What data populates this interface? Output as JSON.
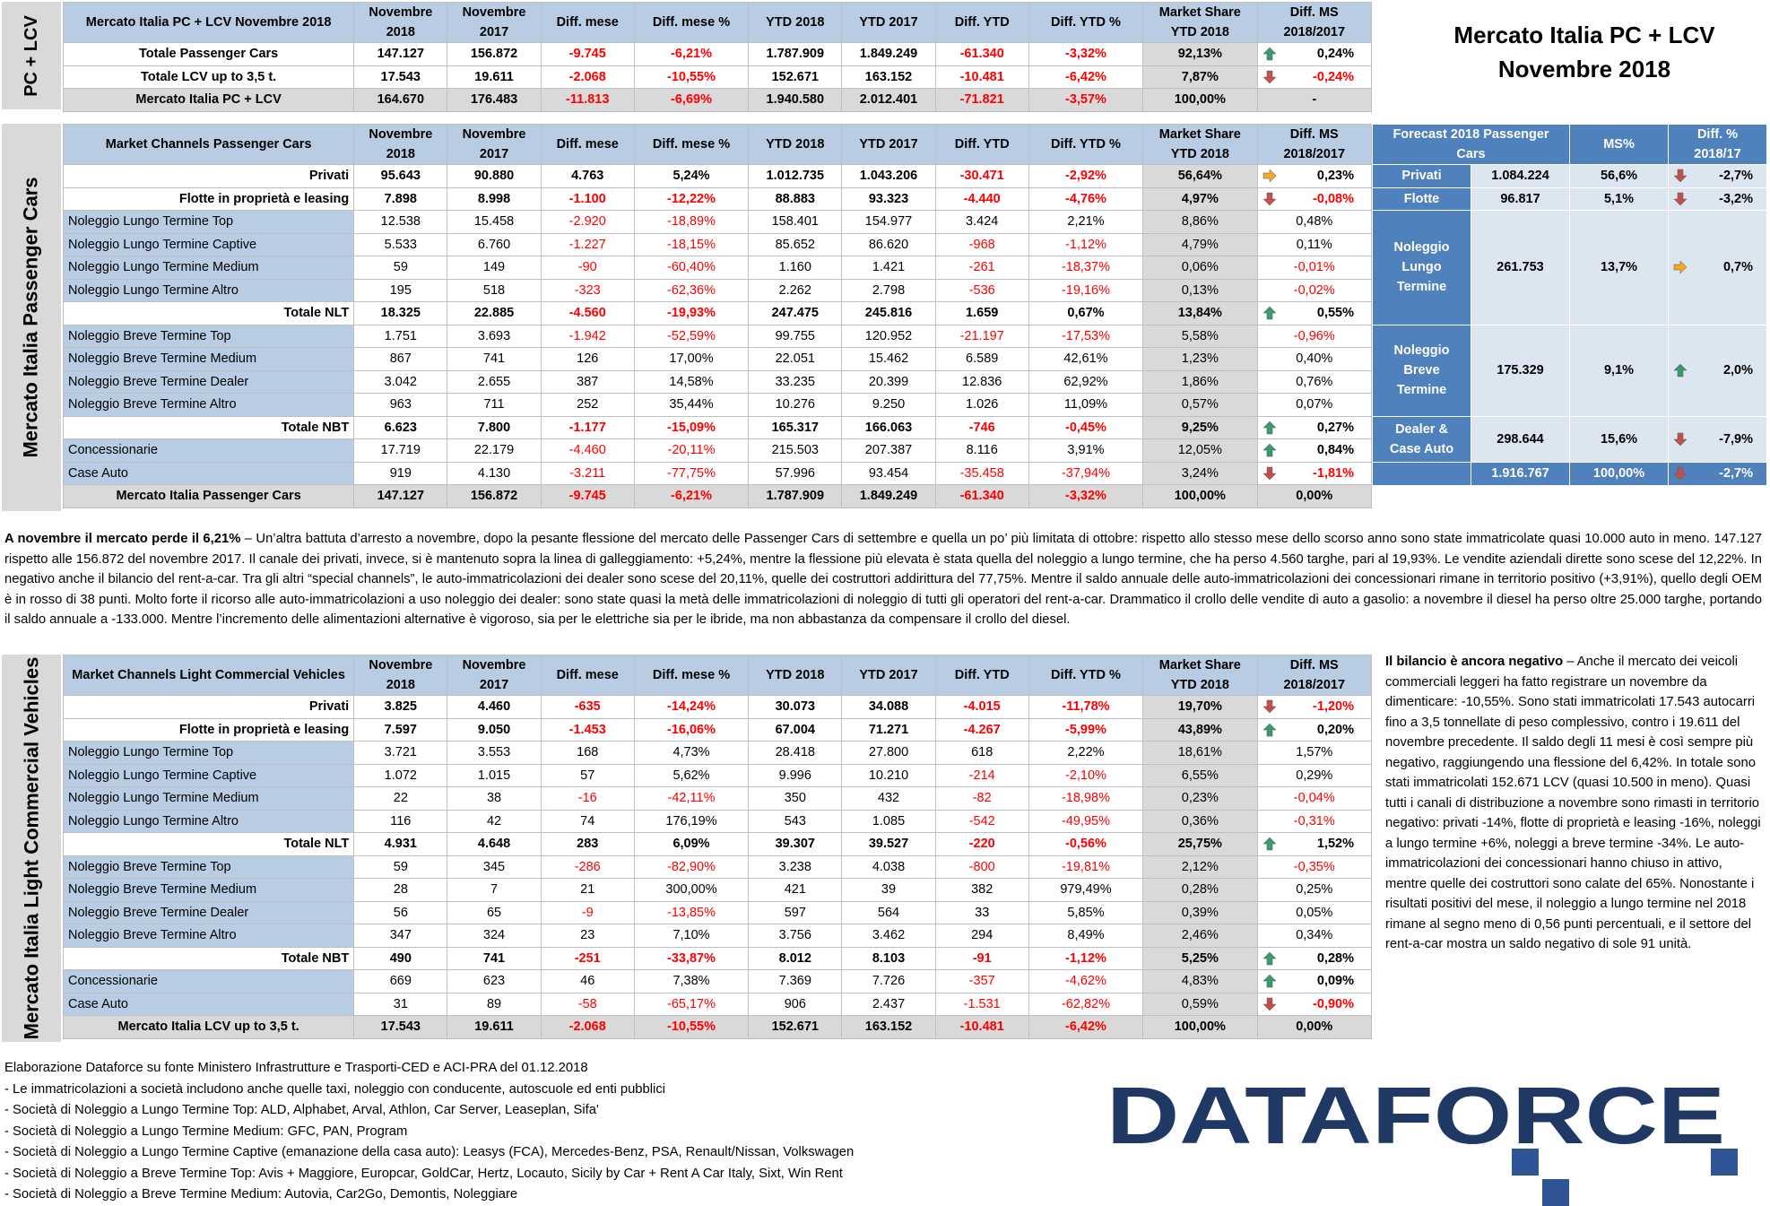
{
  "title": {
    "line1": "Mercato Italia PC + LCV",
    "line2": "Novembre 2018"
  },
  "top": {
    "side_label": "PC + LCV",
    "header": [
      "Mercato Italia PC + LCV Novembre 2018",
      "Novembre 2018",
      "Novembre 2017",
      "Diff. mese",
      "Diff. mese %",
      "YTD 2018",
      "YTD 2017",
      "Diff. YTD",
      "Diff. YTD %",
      "Market Share YTD 2018",
      "Diff. MS 2018/2017"
    ],
    "rows": [
      {
        "label": "Totale Passenger Cars",
        "c": [
          "147.127",
          "156.872",
          "-9.745",
          "-6,21%",
          "1.787.909",
          "1.849.249",
          "-61.340",
          "-3,32%",
          "92,13%"
        ],
        "arrow": "up",
        "dms": "0,24%"
      },
      {
        "label": "Totale LCV up to 3,5 t.",
        "c": [
          "17.543",
          "19.611",
          "-2.068",
          "-10,55%",
          "152.671",
          "163.152",
          "-10.481",
          "-6,42%",
          "7,87%"
        ],
        "arrow": "down",
        "dms": "-0,24%"
      },
      {
        "label": "Mercato Italia PC + LCV",
        "c": [
          "164.670",
          "176.483",
          "-11.813",
          "-6,69%",
          "1.940.580",
          "2.012.401",
          "-71.821",
          "-3,57%",
          "100,00%"
        ],
        "arrow": "",
        "dms": "-"
      }
    ]
  },
  "pc": {
    "side_label": "Mercato Italia Passenger Cars",
    "header": [
      "Market Channels Passenger Cars",
      "Novembre 2018",
      "Novembre 2017",
      "Diff. mese",
      "Diff. mese %",
      "YTD 2018",
      "YTD 2017",
      "Diff. YTD",
      "Diff. YTD %",
      "Market Share YTD 2018",
      "Diff. MS 2018/2017"
    ],
    "rows": [
      {
        "label": "Privati",
        "type": "b",
        "c": [
          "95.643",
          "90.880",
          "4.763",
          "5,24%",
          "1.012.735",
          "1.043.206",
          "-30.471",
          "-2,92%",
          "56,64%"
        ],
        "arrow": "right",
        "dms": "0,23%"
      },
      {
        "label": "Flotte in proprietà e leasing",
        "type": "b",
        "c": [
          "7.898",
          "8.998",
          "-1.100",
          "-12,22%",
          "88.883",
          "93.323",
          "-4.440",
          "-4,76%",
          "4,97%"
        ],
        "arrow": "down",
        "dms": "-0,08%"
      },
      {
        "label": "Noleggio Lungo Termine Top",
        "type": "ch",
        "c": [
          "12.538",
          "15.458",
          "-2.920",
          "-18,89%",
          "158.401",
          "154.977",
          "3.424",
          "2,21%",
          "8,86%"
        ],
        "arrow": "",
        "dms": "0,48%"
      },
      {
        "label": "Noleggio Lungo Termine Captive",
        "type": "ch",
        "c": [
          "5.533",
          "6.760",
          "-1.227",
          "-18,15%",
          "85.652",
          "86.620",
          "-968",
          "-1,12%",
          "4,79%"
        ],
        "arrow": "",
        "dms": "0,11%"
      },
      {
        "label": "Noleggio Lungo Termine Medium",
        "type": "ch",
        "c": [
          "59",
          "149",
          "-90",
          "-60,40%",
          "1.160",
          "1.421",
          "-261",
          "-18,37%",
          "0,06%"
        ],
        "arrow": "",
        "dms": "-0,01%"
      },
      {
        "label": "Noleggio Lungo Termine Altro",
        "type": "ch",
        "c": [
          "195",
          "518",
          "-323",
          "-62,36%",
          "2.262",
          "2.798",
          "-536",
          "-19,16%",
          "0,13%"
        ],
        "arrow": "",
        "dms": "-0,02%"
      },
      {
        "label": "Totale NLT",
        "type": "b",
        "c": [
          "18.325",
          "22.885",
          "-4.560",
          "-19,93%",
          "247.475",
          "245.816",
          "1.659",
          "0,67%",
          "13,84%"
        ],
        "arrow": "up",
        "dms": "0,55%"
      },
      {
        "label": "Noleggio Breve Termine Top",
        "type": "ch",
        "c": [
          "1.751",
          "3.693",
          "-1.942",
          "-52,59%",
          "99.755",
          "120.952",
          "-21.197",
          "-17,53%",
          "5,58%"
        ],
        "arrow": "",
        "dms": "-0,96%"
      },
      {
        "label": "Noleggio Breve Termine Medium",
        "type": "ch",
        "c": [
          "867",
          "741",
          "126",
          "17,00%",
          "22.051",
          "15.462",
          "6.589",
          "42,61%",
          "1,23%"
        ],
        "arrow": "",
        "dms": "0,40%"
      },
      {
        "label": "Noleggio Breve Termine Dealer",
        "type": "ch",
        "c": [
          "3.042",
          "2.655",
          "387",
          "14,58%",
          "33.235",
          "20.399",
          "12.836",
          "62,92%",
          "1,86%"
        ],
        "arrow": "",
        "dms": "0,76%"
      },
      {
        "label": "Noleggio Breve Termine Altro",
        "type": "ch",
        "c": [
          "963",
          "711",
          "252",
          "35,44%",
          "10.276",
          "9.250",
          "1.026",
          "11,09%",
          "0,57%"
        ],
        "arrow": "",
        "dms": "0,07%"
      },
      {
        "label": "Totale NBT",
        "type": "b",
        "c": [
          "6.623",
          "7.800",
          "-1.177",
          "-15,09%",
          "165.317",
          "166.063",
          "-746",
          "-0,45%",
          "9,25%"
        ],
        "arrow": "up",
        "dms": "0,27%"
      },
      {
        "label": "Concessionarie",
        "type": "ch",
        "c": [
          "17.719",
          "22.179",
          "-4.460",
          "-20,11%",
          "215.503",
          "207.387",
          "8.116",
          "3,91%",
          "12,05%"
        ],
        "arrow": "up",
        "dms": "0,84%",
        "dmsbold": true
      },
      {
        "label": "Case Auto",
        "type": "ch",
        "c": [
          "919",
          "4.130",
          "-3.211",
          "-77,75%",
          "57.996",
          "93.454",
          "-35.458",
          "-37,94%",
          "3,24%"
        ],
        "arrow": "down",
        "dms": "-1,81%",
        "dmsbold": true
      },
      {
        "label": "Mercato Italia Passenger Cars",
        "type": "tot",
        "c": [
          "147.127",
          "156.872",
          "-9.745",
          "-6,21%",
          "1.787.909",
          "1.849.249",
          "-61.340",
          "-3,32%",
          "100,00%"
        ],
        "arrow": "",
        "dms": "0,00%"
      }
    ]
  },
  "forecast": {
    "header": [
      "Forecast 2018 Passenger Cars",
      "MS%",
      "Diff. % 2018/17"
    ],
    "rows": [
      {
        "label": "Privati",
        "value": "1.084.224",
        "ms": "56,6%",
        "arrow": "down",
        "diff": "-2,7%"
      },
      {
        "label": "Flotte",
        "value": "96.817",
        "ms": "5,1%",
        "arrow": "down",
        "diff": "-3,2%"
      },
      {
        "label": "Noleggio Lungo Termine",
        "value": "261.753",
        "ms": "13,7%",
        "arrow": "right",
        "diff": "0,7%"
      },
      {
        "label": "Noleggio Breve Termine",
        "value": "175.329",
        "ms": "9,1%",
        "arrow": "up",
        "diff": "2,0%"
      },
      {
        "label": "Dealer & Case Auto",
        "value": "298.644",
        "ms": "15,6%",
        "arrow": "down",
        "diff": "-7,9%"
      },
      {
        "label": "",
        "value": "1.916.767",
        "ms": "100,00%",
        "arrow": "down",
        "diff": "-2,7%"
      }
    ]
  },
  "pc_text": {
    "lead": "A novembre il mercato perde il 6,21%",
    "body": " – Un’altra battuta d’arresto a novembre, dopo la pesante flessione del mercato delle Passenger Cars di settembre e quella un po’ più limitata di ottobre: rispetto allo stesso mese dello scorso anno sono state immatricolate quasi 10.000 auto in meno. 147.127 rispetto alle 156.872 del novembre 2017. Il canale dei privati, invece, si è mantenuto sopra la linea di galleggiamento: +5,24%, mentre la flessione più elevata è stata quella del noleggio a lungo termine, che ha perso 4.560 targhe, pari al 19,93%. Le vendite aziendali dirette sono scese del 12,22%. In negativo anche il bilancio del rent-a-car. Tra gli altri “special channels”, le auto-immatricolazioni dei dealer sono scese del 20,11%, quelle dei costruttori addirittura del 77,75%. Mentre il saldo annuale delle auto-immatricolazioni dei concessionari rimane in territorio positivo (+3,91%), quello degli OEM è in rosso di 38 punti. Molto forte il ricorso alle auto-immatricolazioni a uso noleggio dei dealer: sono state quasi la metà delle immatricolazioni di noleggio di tutti gli operatori del rent-a-car. Drammatico il crollo delle vendite di auto a gasolio: a novembre il diesel ha perso oltre 25.000 targhe, portando il saldo annuale a -133.000. Mentre l’incremento delle alimentazioni alternative è vigoroso, sia per le elettriche sia per le ibride, ma non abbastanza da compensare il crollo del diesel."
  },
  "lcv": {
    "side_label": "Mercato Italia Light Commercial Vehicles",
    "header": [
      "Market Channels Light Commercial Vehicles",
      "Novembre 2018",
      "Novembre 2017",
      "Diff. mese",
      "Diff. mese %",
      "YTD 2018",
      "YTD 2017",
      "Diff. YTD",
      "Diff. YTD %",
      "Market Share YTD 2018",
      "Diff. MS 2018/2017"
    ],
    "rows": [
      {
        "label": "Privati",
        "type": "b",
        "c": [
          "3.825",
          "4.460",
          "-635",
          "-14,24%",
          "30.073",
          "34.088",
          "-4.015",
          "-11,78%",
          "19,70%"
        ],
        "arrow": "down",
        "dms": "-1,20%"
      },
      {
        "label": "Flotte in proprietà e leasing",
        "type": "b",
        "c": [
          "7.597",
          "9.050",
          "-1.453",
          "-16,06%",
          "67.004",
          "71.271",
          "-4.267",
          "-5,99%",
          "43,89%"
        ],
        "arrow": "up",
        "dms": "0,20%"
      },
      {
        "label": "Noleggio Lungo Termine Top",
        "type": "ch",
        "c": [
          "3.721",
          "3.553",
          "168",
          "4,73%",
          "28.418",
          "27.800",
          "618",
          "2,22%",
          "18,61%"
        ],
        "arrow": "",
        "dms": "1,57%"
      },
      {
        "label": "Noleggio Lungo Termine Captive",
        "type": "ch",
        "c": [
          "1.072",
          "1.015",
          "57",
          "5,62%",
          "9.996",
          "10.210",
          "-214",
          "-2,10%",
          "6,55%"
        ],
        "arrow": "",
        "dms": "0,29%"
      },
      {
        "label": "Noleggio Lungo Termine Medium",
        "type": "ch",
        "c": [
          "22",
          "38",
          "-16",
          "-42,11%",
          "350",
          "432",
          "-82",
          "-18,98%",
          "0,23%"
        ],
        "arrow": "",
        "dms": "-0,04%"
      },
      {
        "label": "Noleggio Lungo Termine Altro",
        "type": "ch",
        "c": [
          "116",
          "42",
          "74",
          "176,19%",
          "543",
          "1.085",
          "-542",
          "-49,95%",
          "0,36%"
        ],
        "arrow": "",
        "dms": "-0,31%"
      },
      {
        "label": "Totale NLT",
        "type": "b",
        "c": [
          "4.931",
          "4.648",
          "283",
          "6,09%",
          "39.307",
          "39.527",
          "-220",
          "-0,56%",
          "25,75%"
        ],
        "arrow": "up",
        "dms": "1,52%"
      },
      {
        "label": "Noleggio Breve Termine Top",
        "type": "ch",
        "c": [
          "59",
          "345",
          "-286",
          "-82,90%",
          "3.238",
          "4.038",
          "-800",
          "-19,81%",
          "2,12%"
        ],
        "arrow": "",
        "dms": "-0,35%"
      },
      {
        "label": "Noleggio Breve Termine Medium",
        "type": "ch",
        "c": [
          "28",
          "7",
          "21",
          "300,00%",
          "421",
          "39",
          "382",
          "979,49%",
          "0,28%"
        ],
        "arrow": "",
        "dms": "0,25%"
      },
      {
        "label": "Noleggio Breve Termine Dealer",
        "type": "ch",
        "c": [
          "56",
          "65",
          "-9",
          "-13,85%",
          "597",
          "564",
          "33",
          "5,85%",
          "0,39%"
        ],
        "arrow": "",
        "dms": "0,05%"
      },
      {
        "label": "Noleggio Breve Termine Altro",
        "type": "ch",
        "c": [
          "347",
          "324",
          "23",
          "7,10%",
          "3.756",
          "3.462",
          "294",
          "8,49%",
          "2,46%"
        ],
        "arrow": "",
        "dms": "0,34%"
      },
      {
        "label": "Totale NBT",
        "type": "b",
        "c": [
          "490",
          "741",
          "-251",
          "-33,87%",
          "8.012",
          "8.103",
          "-91",
          "-1,12%",
          "5,25%"
        ],
        "arrow": "up",
        "dms": "0,28%"
      },
      {
        "label": "Concessionarie",
        "type": "ch",
        "c": [
          "669",
          "623",
          "46",
          "7,38%",
          "7.369",
          "7.726",
          "-357",
          "-4,62%",
          "4,83%"
        ],
        "arrow": "up",
        "dms": "0,09%",
        "dmsbold": true
      },
      {
        "label": "Case Auto",
        "type": "ch",
        "c": [
          "31",
          "89",
          "-58",
          "-65,17%",
          "906",
          "2.437",
          "-1.531",
          "-62,82%",
          "0,59%"
        ],
        "arrow": "down",
        "dms": "-0,90%",
        "dmsbold": true
      },
      {
        "label": "Mercato Italia LCV up to 3,5 t.",
        "type": "tot",
        "c": [
          "17.543",
          "19.611",
          "-2.068",
          "-10,55%",
          "152.671",
          "163.152",
          "-10.481",
          "-6,42%",
          "100,00%"
        ],
        "arrow": "",
        "dms": "0,00%"
      }
    ]
  },
  "lcv_text": {
    "lead": "Il bilancio è ancora negativo",
    "body": " – Anche il mercato dei veicoli commerciali leggeri ha fatto registrare un novembre da dimenticare: -10,55%. Sono stati immatricolati 17.543 autocarri fino a 3,5 tonnellate di peso complessivo, contro i 19.611 del novembre precedente. Il saldo degli 11 mesi è così sempre più negativo, raggiungendo una flessione del 6,42%. In totale sono stati immatricolati 152.671 LCV (quasi 10.500 in meno). Quasi tutti i canali di distribuzione a novembre sono rimasti in territorio negativo: privati -14%, flotte di proprietà e leasing -16%, noleggi a lungo termine +6%, noleggi a breve termine -34%. Le auto-immatricolazioni dei concessionari hanno chiuso in attivo, mentre quelle dei costruttori sono calate del 65%. Nonostante i risultati positivi del mese, il noleggio a lungo termine nel 2018 rimane al segno meno di 0,56 punti percentuali, e il settore del rent-a-car mostra un saldo negativo di sole 91 unità."
  },
  "footer": [
    "Elaborazione Dataforce su fonte Ministero Infrastrutture e Trasporti-CED e ACI-PRA del 01.12.2018",
    "- Le immatricolazioni a società includono anche quelle taxi, noleggio con conducente, autoscuole ed enti pubblici",
    "- Società di Noleggio a Lungo Termine Top: ALD, Alphabet, Arval, Athlon, Car Server, Leaseplan, Sifa'",
    "- Società di Noleggio a Lungo Termine Medium: GFC, PAN, Program",
    "- Società di Noleggio a Lungo Termine Captive (emanazione della casa auto): Leasys (FCA), Mercedes-Benz, PSA, Renault/Nissan, Volkswagen",
    "- Società di Noleggio a Breve Termine Top: Avis + Maggiore, Europcar, GoldCar, Hertz, Locauto, Sicily by Car + Rent A Car Italy, Sixt, Win Rent",
    "- Società di Noleggio a Breve Termine Medium: Autovia, Car2Go, Demontis, Noleggiare"
  ],
  "logo": {
    "text": "DATAFORCE",
    "color": "#1f3864",
    "accent": "#2f5597"
  },
  "colors": {
    "header": "#b8cce4",
    "total": "#d9d9d9",
    "forecast": "#4f81bd",
    "forecast_light": "#dce6f1",
    "negative": "#ff0000",
    "arrow_up": "#3a9a6e",
    "arrow_down": "#c0504d",
    "arrow_right": "#f6a623"
  }
}
